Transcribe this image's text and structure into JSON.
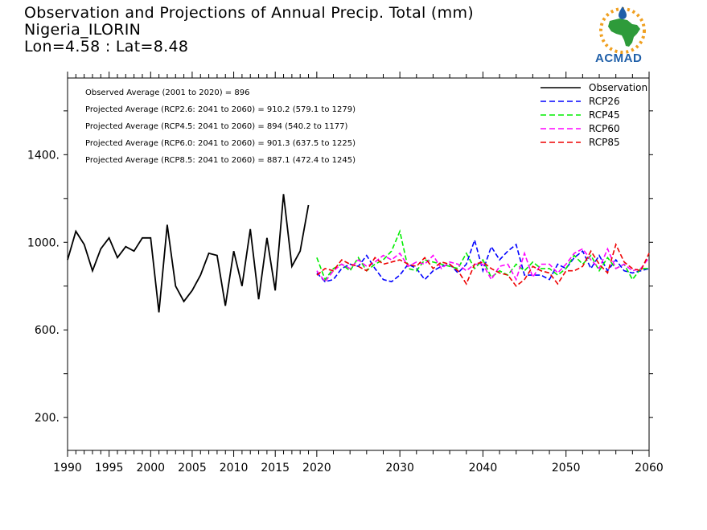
{
  "header": {
    "title": "Observation and Projections of Annual Precip. Total (mm)",
    "location": "Nigeria_ILORIN",
    "coords": "Lon=4.58 : Lat=8.48"
  },
  "logo": {
    "text": "ACMAD",
    "colors": {
      "green": "#2e9b3a",
      "orange": "#f0a020",
      "blue": "#1f5fa8"
    }
  },
  "chart_data": {
    "type": "line",
    "title": "Observation and Projections of Annual Precip. Total (mm)",
    "xlim": [
      1990,
      2060
    ],
    "ylim": [
      50,
      1750
    ],
    "yticks": [
      200,
      600,
      1000,
      1400
    ],
    "ytick_labels": [
      "200.",
      "600.",
      "1000.",
      "1400."
    ],
    "xticks_major": [
      1990,
      1995,
      2000,
      2005,
      2010,
      2015,
      2020,
      2030,
      2040,
      2050,
      2060
    ],
    "xtick_labels": [
      "1990",
      "1995",
      "2000",
      "2005",
      "2010",
      "2015",
      "2020",
      "2030",
      "2040",
      "2050",
      "2060"
    ],
    "annotations": [
      "Observed Average (2001 to 2020) = 896",
      "Projected Average (RCP2.6: 2041 to 2060) = 910.2 (579.1 to 1279)",
      "Projected Average (RCP4.5: 2041 to 2060) = 894 (540.2 to 1177)",
      "Projected Average (RCP6.0: 2041 to 2060) = 901.3 (637.5 to 1225)",
      "Projected Average (RCP8.5: 2041 to 2060) = 887.1 (472.4 to 1245)"
    ],
    "legend_position": "top-right",
    "series": [
      {
        "name": "Observation",
        "color": "#000000",
        "dashed": false,
        "x_start": 1990,
        "values": [
          920,
          1050,
          990,
          870,
          970,
          1020,
          930,
          980,
          960,
          1020,
          1020,
          680,
          1080,
          800,
          730,
          780,
          850,
          950,
          940,
          710,
          960,
          800,
          1060,
          740,
          1020,
          780,
          1220,
          890,
          960,
          1170
        ]
      },
      {
        "name": "RCP26",
        "color": "#0000ff",
        "dashed": true,
        "x_start": 2020,
        "values": [
          860,
          820,
          830,
          880,
          900,
          890,
          940,
          880,
          830,
          820,
          850,
          900,
          880,
          830,
          870,
          890,
          900,
          860,
          900,
          1010,
          870,
          980,
          920,
          960,
          990,
          850,
          850,
          850,
          830,
          900,
          880,
          930,
          960,
          880,
          940,
          870,
          920,
          870,
          860,
          870,
          880
        ]
      },
      {
        "name": "RCP45",
        "color": "#00ee00",
        "dashed": true,
        "x_start": 2020,
        "values": [
          930,
          830,
          880,
          900,
          870,
          930,
          870,
          900,
          920,
          960,
          1050,
          880,
          870,
          920,
          910,
          900,
          890,
          880,
          950,
          880,
          920,
          840,
          870,
          850,
          900,
          870,
          910,
          880,
          880,
          850,
          880,
          940,
          900,
          940,
          870,
          930,
          880,
          900,
          830,
          880,
          880
        ]
      },
      {
        "name": "RCP60",
        "color": "#ff00ff",
        "dashed": true,
        "x_start": 2020,
        "values": [
          870,
          820,
          870,
          900,
          880,
          920,
          890,
          910,
          940,
          920,
          950,
          890,
          910,
          900,
          940,
          880,
          910,
          900,
          870,
          900,
          900,
          830,
          890,
          900,
          830,
          950,
          840,
          900,
          900,
          860,
          900,
          950,
          970,
          920,
          880,
          970,
          880,
          900,
          870,
          880,
          930
        ]
      },
      {
        "name": "RCP85",
        "color": "#ee0000",
        "dashed": true,
        "x_start": 2020,
        "values": [
          850,
          880,
          870,
          920,
          900,
          890,
          870,
          930,
          900,
          910,
          920,
          900,
          890,
          930,
          880,
          910,
          900,
          870,
          810,
          900,
          910,
          880,
          860,
          850,
          800,
          830,
          890,
          870,
          860,
          810,
          870,
          870,
          890,
          960,
          900,
          860,
          990,
          910,
          880,
          870,
          950
        ]
      }
    ]
  }
}
